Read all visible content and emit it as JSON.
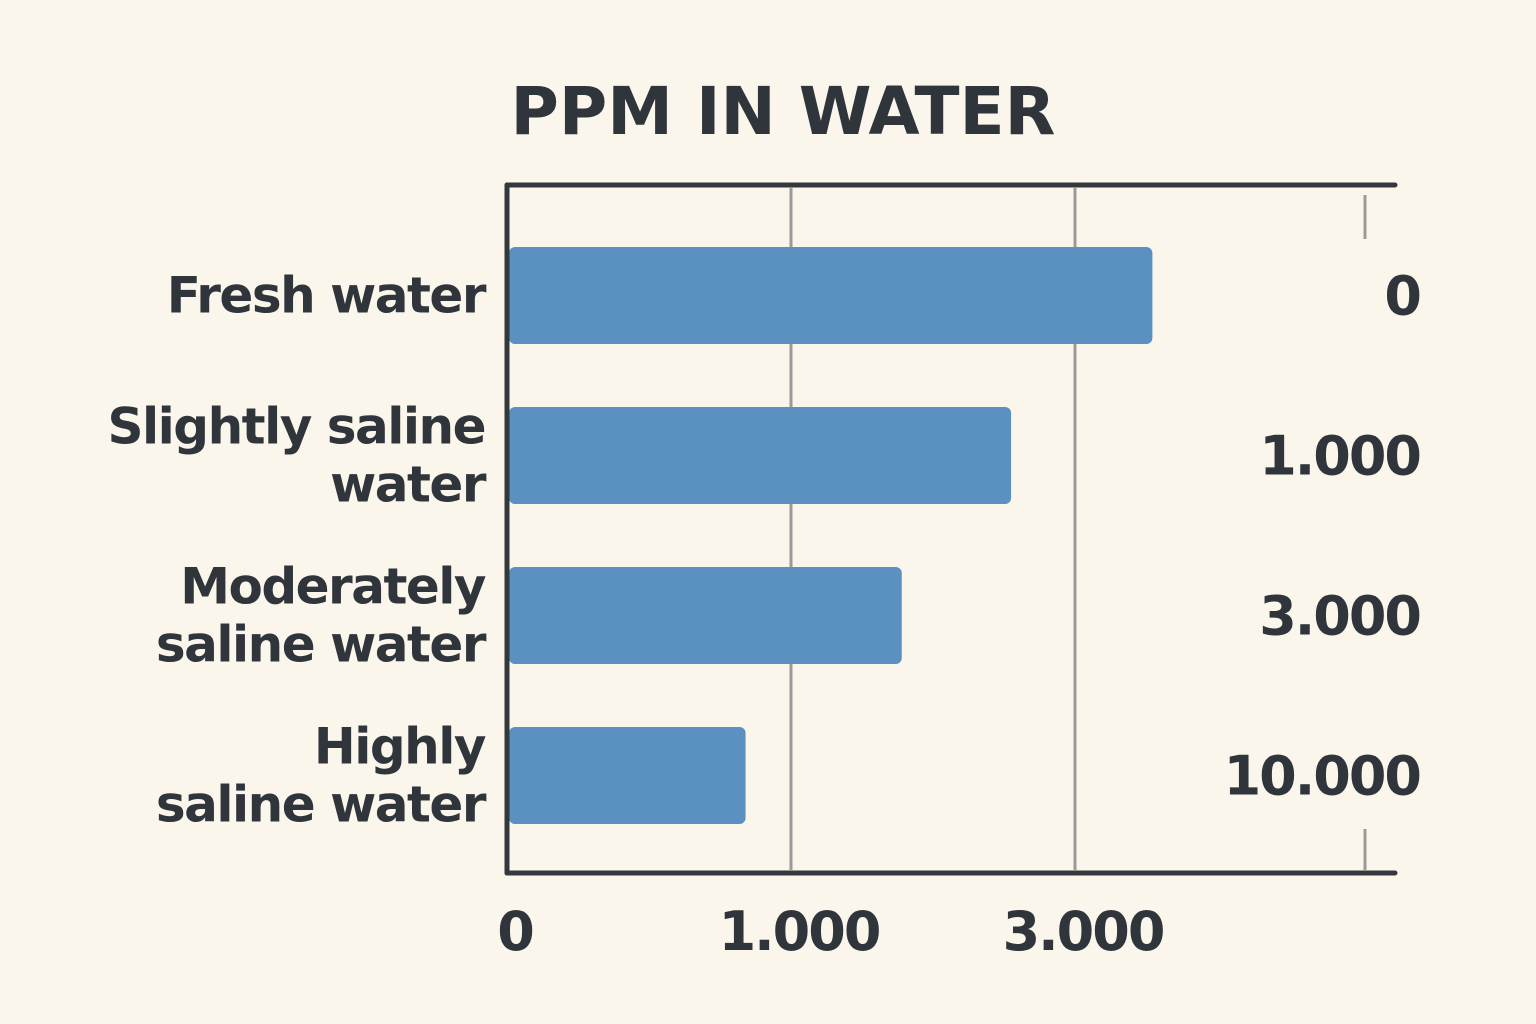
{
  "chart_data": {
    "type": "bar",
    "orientation": "horizontal",
    "title": "PPM IN WATER",
    "categories": [
      [
        "Fresh water"
      ],
      [
        "Slightly saline",
        "water"
      ],
      [
        "Moderately",
        "saline water"
      ],
      [
        "Highly",
        "saline water"
      ]
    ],
    "values": [
      3545,
      2550,
      1780,
      840
    ],
    "annotations": [
      "0",
      "1.000",
      "3.000",
      "10.000"
    ],
    "x_ticks": [
      {
        "value": 0,
        "label": "0"
      },
      {
        "value": 1000,
        "label": "1.000"
      },
      {
        "value": 3000,
        "label": "3.000"
      }
    ],
    "xlabel": "",
    "ylabel": "",
    "grid": true,
    "colors": {
      "bar": "#5b91c0",
      "text": "#2f353b",
      "axis": "#33383d",
      "grid": "#9a9a9a",
      "background": "#faf6ec"
    }
  }
}
